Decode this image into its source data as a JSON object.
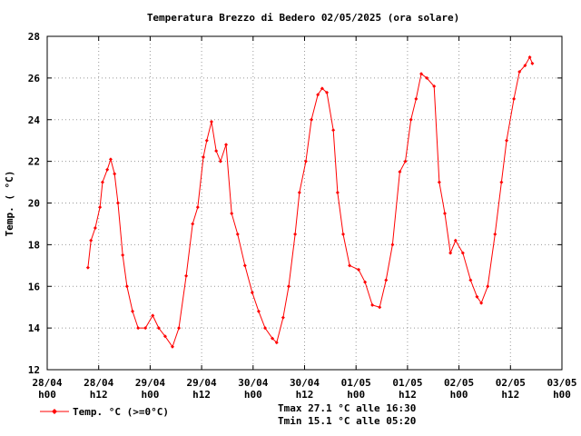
{
  "chart_data": {
    "type": "line",
    "title": "Temperatura Brezzo di Bedero 02/05/2025 (ora solare)",
    "y_label": "Temp. ( °C)",
    "annotations": [
      "Tmax 27.1 °C alle 16:30",
      "Tmin 15.1 °C alle 05:20"
    ],
    "x": [
      9.5,
      10.2,
      11.2,
      12.3,
      12.9,
      14,
      14.8,
      15.7,
      16.5,
      17.6,
      18.6,
      19.9,
      21.2,
      22.9,
      24.6,
      26,
      27.5,
      29.2,
      30.7,
      32.4,
      33.9,
      35.1,
      36.4,
      37.2,
      38.3,
      39.4,
      40.4,
      41.7,
      43,
      44.4,
      46.1,
      47.8,
      49.3,
      50.8,
      52.5,
      53.5,
      55,
      56.3,
      57.8,
      58.8,
      60.3,
      61.6,
      63.1,
      64.1,
      65.2,
      66.7,
      67.7,
      69,
      70.5,
      72.6,
      74.1,
      75.8,
      77.5,
      79,
      80.5,
      82.2,
      83.5,
      84.8,
      86,
      87.2,
      88.5,
      90.2,
      91.4,
      92.7,
      94,
      95.2,
      96.9,
      98.7,
      100.2,
      101.2,
      102.7,
      104.4,
      105.9,
      107.1,
      108.8,
      110.1,
      111.4,
      112.5,
      113.1
    ],
    "series": [
      {
        "name": "Temp. °C (>=0°C)",
        "color": "#ff0000",
        "values": [
          16.9,
          18.2,
          18.8,
          19.8,
          21.0,
          21.6,
          22.1,
          21.4,
          20.0,
          17.5,
          16.0,
          14.8,
          14.0,
          14.0,
          14.6,
          14.0,
          13.6,
          13.1,
          14.0,
          16.5,
          19.0,
          19.8,
          22.2,
          23.0,
          23.9,
          22.5,
          22.0,
          22.8,
          19.5,
          18.5,
          17.0,
          15.7,
          14.8,
          14.0,
          13.5,
          13.3,
          14.5,
          16.0,
          18.5,
          20.5,
          22.0,
          24.0,
          25.2,
          25.5,
          25.3,
          23.5,
          20.5,
          18.5,
          17.0,
          16.8,
          16.2,
          15.1,
          15.0,
          16.3,
          18.0,
          21.5,
          22.0,
          24.0,
          25.0,
          26.2,
          26.0,
          25.6,
          21.0,
          19.5,
          17.6,
          18.2,
          17.6,
          16.3,
          15.5,
          15.2,
          16.0,
          18.5,
          21.0,
          23.0,
          25.0,
          26.3,
          26.6,
          27.0,
          26.7
        ]
      }
    ],
    "xlim": [
      0,
      120
    ],
    "xticks": [
      {
        "value": 0,
        "label": "28/04 h00"
      },
      {
        "value": 12,
        "label": "28/04 h12"
      },
      {
        "value": 24,
        "label": "29/04 h00"
      },
      {
        "value": 36,
        "label": "29/04 h12"
      },
      {
        "value": 48,
        "label": "30/04 h00"
      },
      {
        "value": 60,
        "label": "30/04 h12"
      },
      {
        "value": 72,
        "label": "01/05 h00"
      },
      {
        "value": 84,
        "label": "01/05 h12"
      },
      {
        "value": 96,
        "label": "02/05 h00"
      },
      {
        "value": 108,
        "label": "02/05 h12"
      },
      {
        "value": 120,
        "label": "03/05 h00"
      }
    ],
    "ylim": [
      12,
      28
    ],
    "yticks": [
      12,
      14,
      16,
      18,
      20,
      22,
      24,
      26,
      28
    ],
    "grid": true
  }
}
